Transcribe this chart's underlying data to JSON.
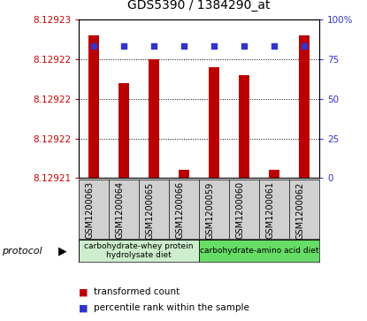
{
  "title": "GDS5390 / 1384290_at",
  "samples": [
    "GSM1200063",
    "GSM1200064",
    "GSM1200065",
    "GSM1200066",
    "GSM1200059",
    "GSM1200060",
    "GSM1200061",
    "GSM1200062"
  ],
  "red_values": [
    8.129228,
    8.129222,
    8.129225,
    8.129211,
    8.129224,
    8.129223,
    8.129211,
    8.129228
  ],
  "blue_values": [
    83,
    83,
    83,
    83,
    83,
    83,
    83,
    83
  ],
  "ylim_left": [
    8.12921,
    8.12923
  ],
  "ylim_right": [
    0,
    100
  ],
  "left_ticks": [
    8.12921,
    8.129215,
    8.12922,
    8.129225,
    8.12923
  ],
  "left_tick_labels": [
    "8.12921",
    "8.12922",
    "8.12922",
    "8.12922",
    "8.12923"
  ],
  "right_ticks": [
    0,
    25,
    50,
    75,
    100
  ],
  "right_tick_labels": [
    "0",
    "25",
    "50",
    "75",
    "100%"
  ],
  "protocol_groups": [
    {
      "label": "carbohydrate-whey protein\nhydrolysate diet",
      "start": 0,
      "end": 4,
      "color": "#cceecc"
    },
    {
      "label": "carbohydrate-amino acid diet",
      "start": 4,
      "end": 8,
      "color": "#66dd66"
    }
  ],
  "protocol_label": "protocol",
  "legend_red": "transformed count",
  "legend_blue": "percentile rank within the sample",
  "bar_color": "#bb0000",
  "dot_color": "#3333cc",
  "gray_bg": "#d0d0d0",
  "plot_bg_color": "#ffffff",
  "bar_width": 0.35,
  "dot_size": 20
}
